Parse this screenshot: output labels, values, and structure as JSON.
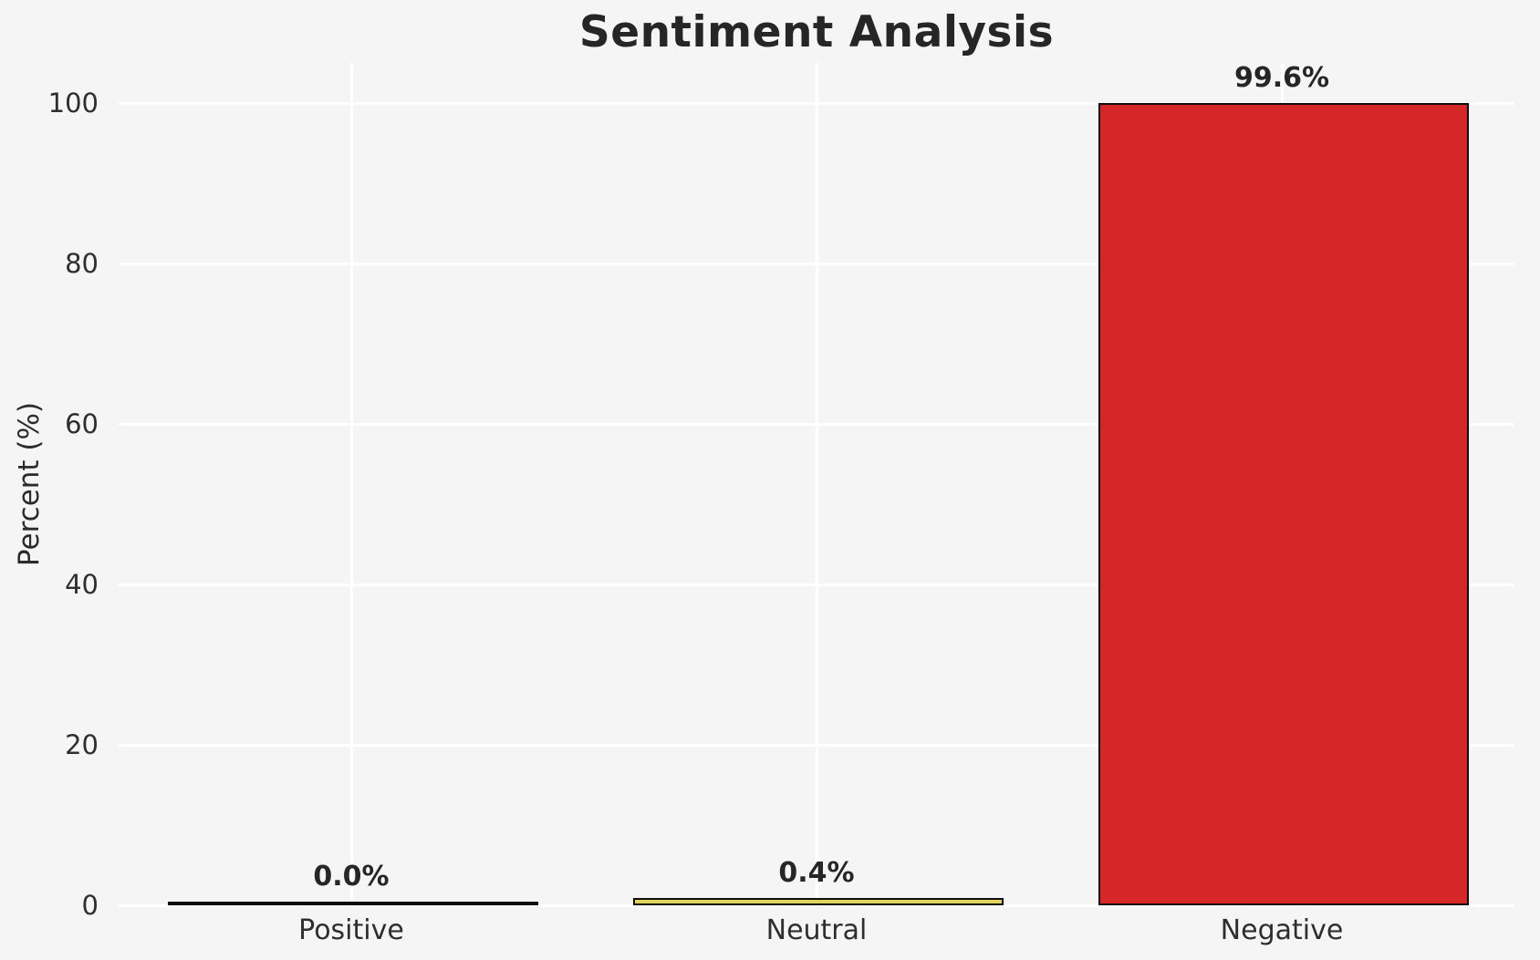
{
  "figure": {
    "background_color": "#f5f5f6",
    "grid_color": "#ffffff",
    "text_color": "#262626"
  },
  "chart_data": {
    "type": "bar",
    "title": "Sentiment Analysis",
    "xlabel": "",
    "ylabel": "Percent (%)",
    "categories": [
      "Positive",
      "Neutral",
      "Negative"
    ],
    "values": [
      0.0,
      0.4,
      99.6
    ],
    "bar_labels": [
      "0.0%",
      "0.4%",
      "99.6%"
    ],
    "bar_colors": [
      "#bfbfbf",
      "#e0d45c",
      "#d62728"
    ],
    "bar_edge_color": "#0d0d0d",
    "yticks": [
      0,
      20,
      40,
      60,
      80,
      100
    ],
    "ytick_labels": [
      "0",
      "20",
      "40",
      "60",
      "80",
      "100"
    ],
    "ylim": [
      0,
      105
    ],
    "grid": true,
    "gridlines": "horizontal at each ytick and vertical at each category center, white on light gray",
    "legend_position": "none"
  }
}
